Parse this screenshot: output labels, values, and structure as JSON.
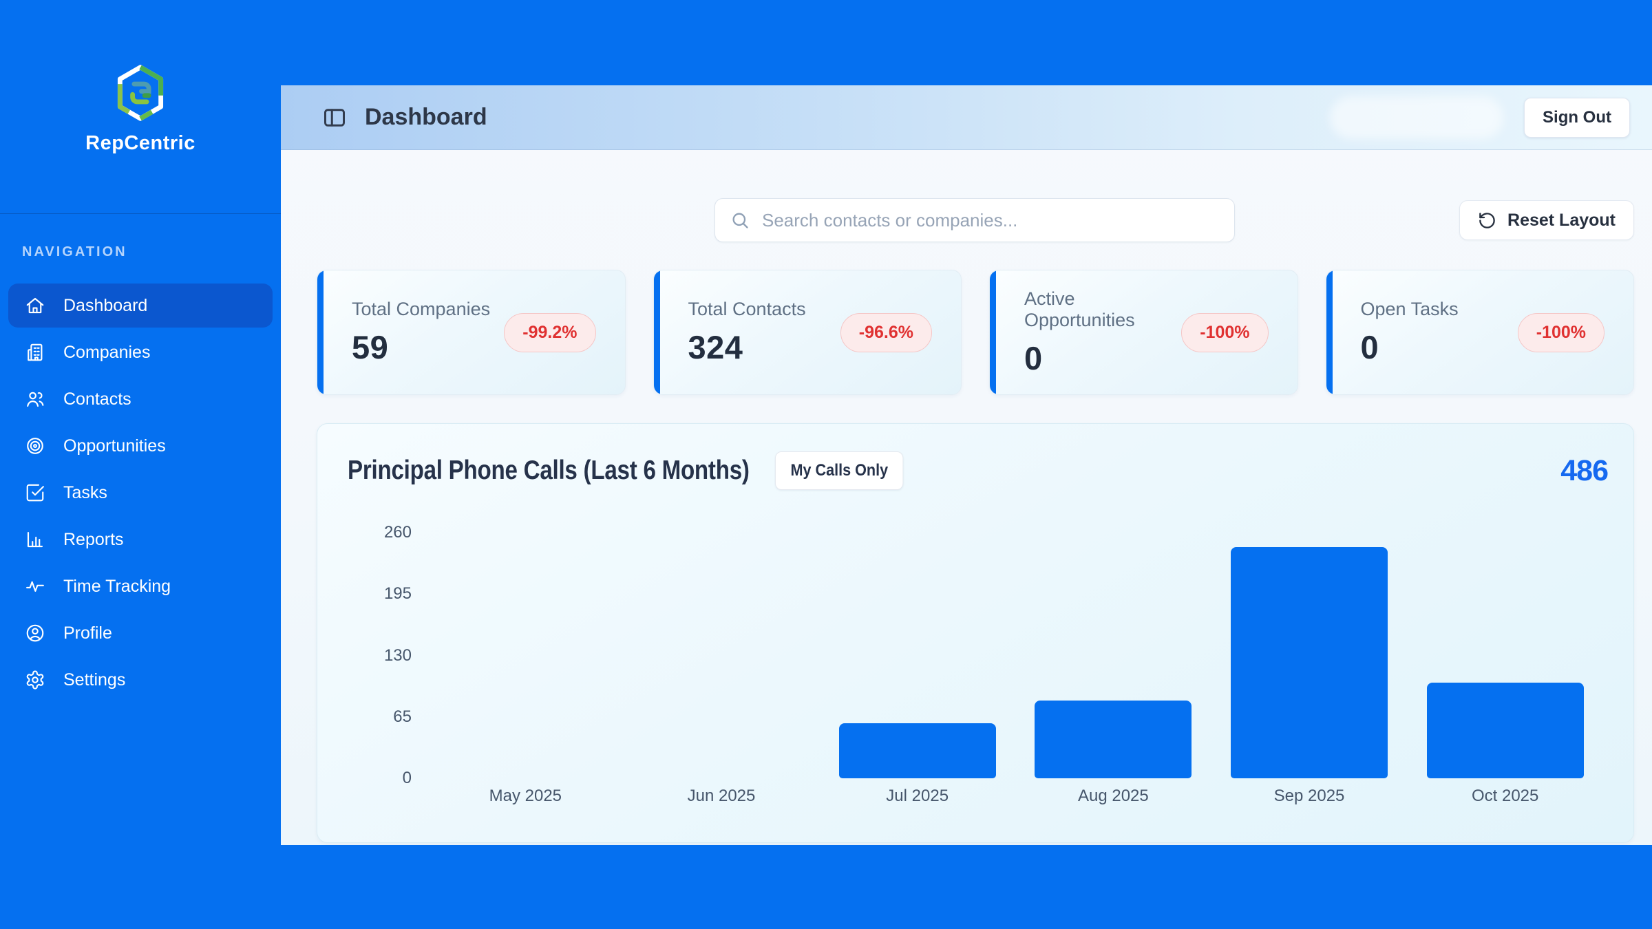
{
  "app": {
    "brand": "RepCentric"
  },
  "colors": {
    "primary_blue": "#0570f0",
    "active_nav_blue": "#0b57cf",
    "negative_badge_red": "#e03131",
    "chart_total_blue": "#1569f0"
  },
  "sidebar": {
    "section_label": "NAVIGATION",
    "items": [
      {
        "label": "Dashboard",
        "icon": "home-icon",
        "active": true
      },
      {
        "label": "Companies",
        "icon": "building-icon",
        "active": false
      },
      {
        "label": "Contacts",
        "icon": "users-icon",
        "active": false
      },
      {
        "label": "Opportunities",
        "icon": "target-icon",
        "active": false
      },
      {
        "label": "Tasks",
        "icon": "check-square-icon",
        "active": false
      },
      {
        "label": "Reports",
        "icon": "bar-chart-icon",
        "active": false
      },
      {
        "label": "Time Tracking",
        "icon": "activity-icon",
        "active": false
      },
      {
        "label": "Profile",
        "icon": "user-circle-icon",
        "active": false
      },
      {
        "label": "Settings",
        "icon": "gear-icon",
        "active": false
      }
    ]
  },
  "header": {
    "title": "Dashboard",
    "sign_out_label": "Sign Out"
  },
  "toolbar": {
    "search_placeholder": "Search contacts or companies...",
    "reset_label": "Reset Layout"
  },
  "stats": [
    {
      "label": "Total Companies",
      "value": "59",
      "change": "-99.2%"
    },
    {
      "label": "Total Contacts",
      "value": "324",
      "change": "-96.6%"
    },
    {
      "label": "Active Opportunities",
      "value": "0",
      "change": "-100%"
    },
    {
      "label": "Open Tasks",
      "value": "0",
      "change": "-100%"
    }
  ],
  "chart_data": {
    "type": "bar",
    "title": "Principal Phone Calls (Last 6 Months)",
    "filter_button": "My Calls Only",
    "total": "486",
    "categories": [
      "May 2025",
      "Jun 2025",
      "Jul 2025",
      "Aug 2025",
      "Sep 2025",
      "Oct 2025"
    ],
    "values": [
      0,
      0,
      58,
      82,
      245,
      101
    ],
    "yticks": [
      260,
      195,
      130,
      65,
      0
    ],
    "ylim": [
      0,
      260
    ],
    "bar_color": "#0570f0",
    "grid": false,
    "legend": false
  }
}
